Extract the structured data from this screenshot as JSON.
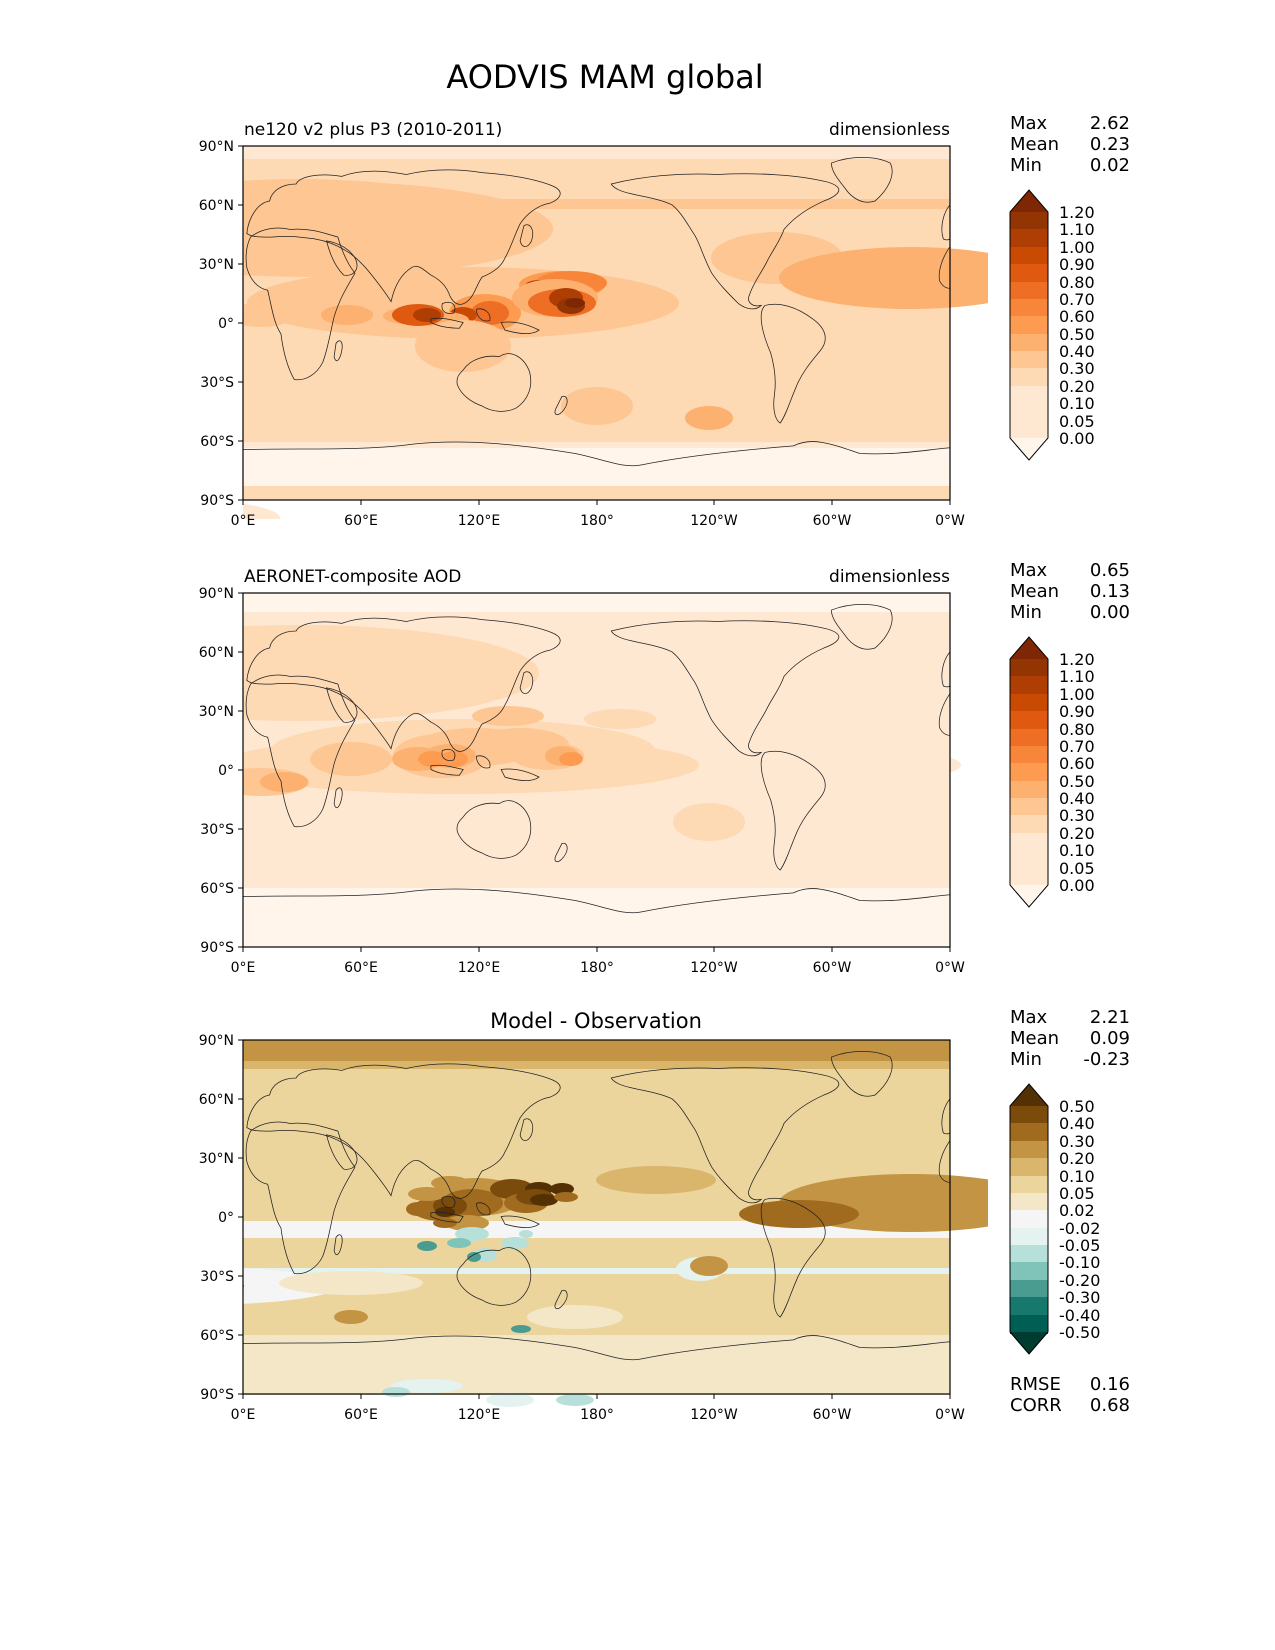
{
  "figure": {
    "title": "AODVIS MAM global"
  },
  "lon_ticks": [
    "0°E",
    "60°E",
    "120°E",
    "180°",
    "120°W",
    "60°W",
    "0°W"
  ],
  "lat_ticks": [
    "90°N",
    "60°N",
    "30°N",
    "0°",
    "30°S",
    "60°S",
    "90°S"
  ],
  "stat_labels": {
    "max": "Max",
    "mean": "Mean",
    "min": "Min",
    "rmse": "RMSE",
    "corr": "CORR"
  },
  "colors": {
    "oranges": [
      "#fff5eb",
      "#fee8d2",
      "#fdd9b4",
      "#fdc692",
      "#fdb170",
      "#fd9c51",
      "#f8863a",
      "#ee6e25",
      "#df5a10",
      "#c94b03",
      "#ae3e03",
      "#923503",
      "#7f2704"
    ],
    "brbg": [
      "#003c30",
      "#015e54",
      "#17796e",
      "#4a9b90",
      "#80c4b9",
      "#b8e0da",
      "#e4f2f0",
      "#f5f5f5",
      "#f3e7c8",
      "#ecd59d",
      "#d9b66b",
      "#c29444",
      "#a06b1e",
      "#7a4b0b",
      "#543005"
    ]
  },
  "panels": [
    {
      "left_title": "ne120 v2 plus P3 (2010-2011)",
      "right_title": "dimensionless",
      "center_title": "",
      "stats": {
        "max": "2.62",
        "mean": "0.23",
        "min": "0.02"
      },
      "colorbar_levels": [
        "1.20",
        "1.10",
        "1.00",
        "0.90",
        "0.80",
        "0.70",
        "0.60",
        "0.50",
        "0.40",
        "0.30",
        "0.20",
        "0.10",
        "0.05",
        "0.00"
      ]
    },
    {
      "left_title": "AERONET-composite AOD",
      "right_title": "dimensionless",
      "center_title": "",
      "stats": {
        "max": "0.65",
        "mean": "0.13",
        "min": "0.00"
      },
      "colorbar_levels": [
        "1.20",
        "1.10",
        "1.00",
        "0.90",
        "0.80",
        "0.70",
        "0.60",
        "0.50",
        "0.40",
        "0.30",
        "0.20",
        "0.10",
        "0.05",
        "0.00"
      ]
    },
    {
      "left_title": "",
      "right_title": "",
      "center_title": "Model - Observation",
      "stats": {
        "max": "2.21",
        "mean": "0.09",
        "min": "-0.23",
        "rmse": "0.16",
        "corr": "0.68"
      },
      "colorbar_levels": [
        "0.50",
        "0.40",
        "0.30",
        "0.20",
        "0.10",
        "0.05",
        "0.02",
        "-0.02",
        "-0.05",
        "-0.10",
        "-0.20",
        "-0.30",
        "-0.40",
        "-0.50"
      ]
    }
  ]
}
